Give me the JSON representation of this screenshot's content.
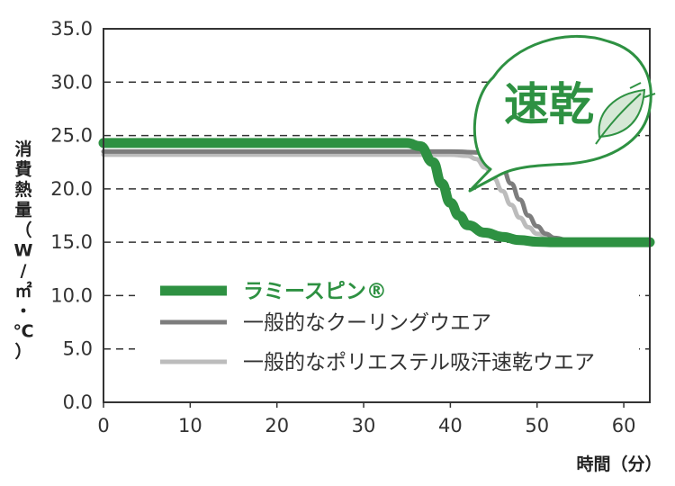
{
  "chart_data": {
    "type": "line",
    "xlabel": "時間（分）",
    "ylabel": "消費熱量（W/㎡・℃）",
    "xlim": [
      0,
      63
    ],
    "ylim": [
      0,
      35
    ],
    "x_ticks": [
      "0",
      "10",
      "20",
      "30",
      "40",
      "50",
      "60"
    ],
    "y_ticks": [
      "0.0",
      "5.0",
      "10.0",
      "15.0",
      "20.0",
      "25.0",
      "30.0",
      "35.0"
    ],
    "grid": "horizontal dashed",
    "legend_position": "bottom-left",
    "series": [
      {
        "name": "ラミースピン®",
        "color": "#2e9142",
        "x": [
          0,
          10,
          20,
          30,
          35,
          36.5,
          38,
          39,
          40,
          41,
          42,
          44,
          46,
          48,
          50,
          52,
          54,
          60,
          63
        ],
        "y": [
          24.3,
          24.3,
          24.3,
          24.3,
          24.3,
          24.0,
          22.5,
          20.5,
          18.7,
          17.5,
          16.6,
          15.9,
          15.5,
          15.2,
          15.05,
          15.0,
          15.0,
          15.0,
          15.0
        ]
      },
      {
        "name": "一般的なクーリングウエア",
        "color": "#7d7d7d",
        "x": [
          0,
          10,
          20,
          30,
          40,
          44,
          45,
          46,
          47,
          48,
          49,
          50,
          51,
          52,
          54,
          60,
          63
        ],
        "y": [
          23.5,
          23.5,
          23.5,
          23.5,
          23.5,
          23.4,
          23.0,
          22.0,
          20.5,
          19.0,
          17.5,
          16.5,
          15.8,
          15.4,
          15.1,
          15.0,
          15.0
        ]
      },
      {
        "name": "一般的なポリエステル吸汗速乾ウエア",
        "color": "#bcbcbc",
        "x": [
          0,
          10,
          20,
          30,
          40,
          42,
          43,
          44,
          45,
          46,
          47,
          48,
          49,
          50,
          52,
          54,
          60,
          63
        ],
        "y": [
          23.2,
          23.2,
          23.2,
          23.2,
          23.2,
          23.1,
          22.8,
          22.0,
          21.0,
          19.8,
          18.5,
          17.3,
          16.4,
          15.8,
          15.2,
          15.0,
          15.0,
          15.0
        ]
      }
    ],
    "annotation": "速乾"
  },
  "colors": {
    "accent": "#2e9142",
    "grid": "#333333",
    "axis": "#333333"
  }
}
